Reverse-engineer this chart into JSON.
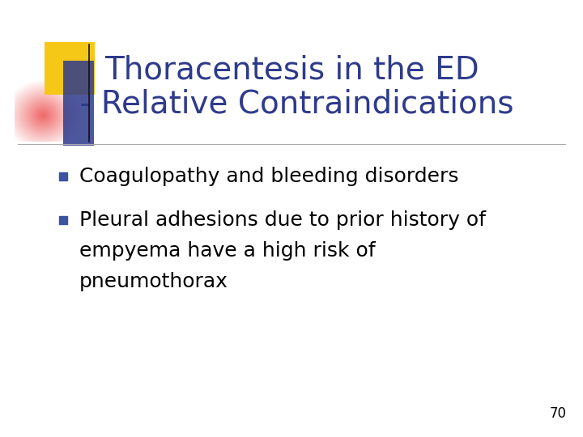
{
  "title_line1": "Thoracentesis in the ED",
  "title_line2": " - Relative Contraindications",
  "title_color": "#2E3A8C",
  "bullet_square_color": "#3D52A0",
  "background_color": "#FFFFFF",
  "body_text_color": "#000000",
  "bullet1": "Coagulopathy and bleeding disorders",
  "bullet2_line1": "Pleural adhesions due to prior history of",
  "bullet2_line2": "empyema have a high risk of",
  "bullet2_line3": "pneumothorax",
  "page_number": "70",
  "separator_line_color": "#AAAAAA",
  "title_fontsize": 28,
  "body_fontsize": 18,
  "page_num_fontsize": 12
}
